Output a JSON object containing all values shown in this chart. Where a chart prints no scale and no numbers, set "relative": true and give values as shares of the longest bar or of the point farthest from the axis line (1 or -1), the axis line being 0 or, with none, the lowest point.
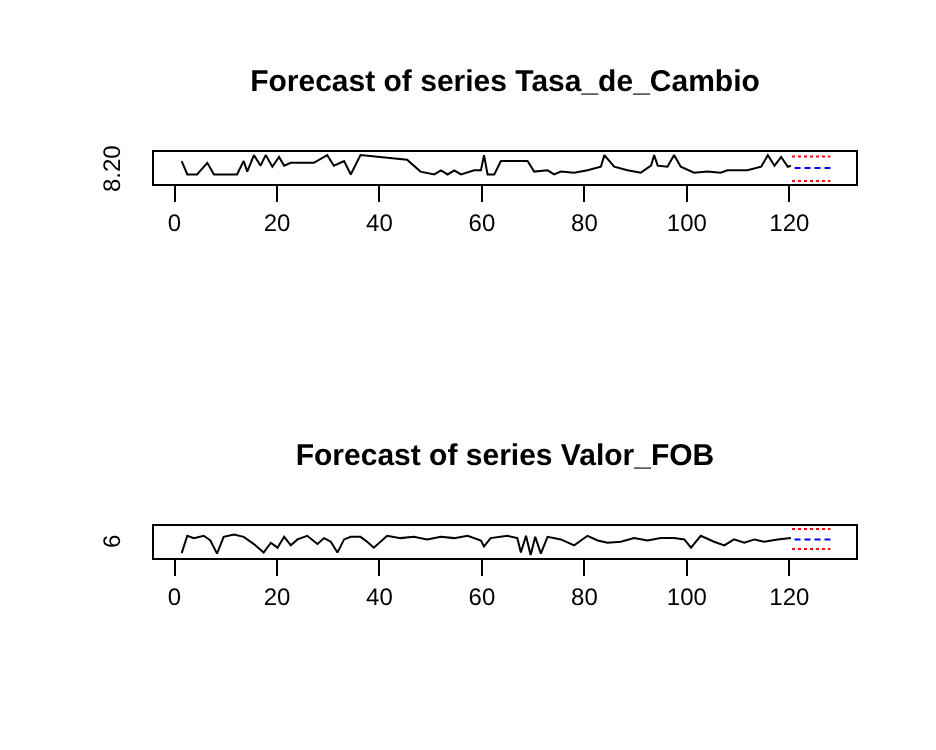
{
  "chart_data": [
    {
      "type": "line",
      "title": "Forecast of series Tasa_de_Cambio",
      "relative": true,
      "xlim": [
        -4,
        133
      ],
      "xticks": [
        0,
        20,
        40,
        60,
        80,
        100,
        120
      ],
      "grid": false,
      "annotations": [
        "8.20"
      ],
      "series": [
        {
          "color": "#000000",
          "line_style": "solid",
          "x": [
            1.4,
            2.5,
            4.4,
            6.4,
            7.7,
            12.2,
            13.5,
            14.2,
            15.5,
            16.8,
            17.8,
            19.1,
            20.4,
            21.4,
            22.7,
            27.2,
            29.8,
            31.1,
            33.1,
            34.4,
            36.3,
            45.4,
            48.0,
            50.7,
            52.0,
            53.3,
            54.6,
            55.9,
            58.5,
            59.8,
            60.4,
            61.1,
            62.4,
            63.7,
            68.9,
            70.2,
            72.8,
            74.1,
            75.4,
            78.0,
            80.6,
            83.2,
            83.9,
            85.8,
            88.4,
            91.0,
            93.0,
            93.6,
            94.3,
            96.2,
            97.5,
            98.8,
            101.4,
            104.0,
            106.6,
            107.9,
            111.8,
            114.5,
            115.8,
            117.1,
            118.4,
            119.7,
            120.3
          ],
          "values": [
            0.77,
            0.25,
            0.25,
            0.7,
            0.25,
            0.25,
            0.77,
            0.36,
            1,
            0.59,
            1,
            0.55,
            0.93,
            0.59,
            0.7,
            0.7,
            1,
            0.59,
            0.77,
            0.25,
            1,
            0.82,
            0.36,
            0.25,
            0.41,
            0.25,
            0.41,
            0.25,
            0.41,
            0.41,
            1,
            0.25,
            0.25,
            0.77,
            0.77,
            0.36,
            0.41,
            0.25,
            0.36,
            0.32,
            0.41,
            0.55,
            1,
            0.55,
            0.41,
            0.32,
            0.59,
            1,
            0.59,
            0.55,
            1,
            0.55,
            0.32,
            0.36,
            0.32,
            0.41,
            0.41,
            0.55,
            1,
            0.59,
            0.93,
            0.55,
            0.59
          ]
        },
        {
          "color": "#0000ff",
          "line_style": "dashed",
          "x": [
            121,
            128
          ],
          "values": [
            0.5,
            0.5
          ]
        },
        {
          "color": "#ff0000",
          "line_style": "dotted",
          "x": [
            120.5,
            128
          ],
          "values": [
            0.95,
            0.95
          ]
        },
        {
          "color": "#ff0000",
          "line_style": "dotted",
          "x": [
            120.5,
            128
          ],
          "values": [
            0,
            0
          ]
        }
      ]
    },
    {
      "type": "line",
      "title": "Forecast of series Valor_FOB",
      "relative": true,
      "xlim": [
        -4,
        133
      ],
      "xticks": [
        0,
        20,
        40,
        60,
        80,
        100,
        120
      ],
      "grid": false,
      "annotations": [
        "6"
      ],
      "series": [
        {
          "color": "#000000",
          "line_style": "solid",
          "x": [
            1.4,
            2.5,
            3.8,
            5.7,
            7.0,
            8.3,
            9.6,
            11.6,
            13.5,
            15.5,
            17.4,
            18.8,
            20.1,
            21.4,
            22.7,
            24.0,
            25.9,
            27.9,
            29.2,
            30.5,
            31.8,
            33.1,
            34.4,
            36.3,
            37.6,
            38.9,
            41.5,
            44.1,
            46.7,
            49.3,
            52.0,
            54.6,
            57.2,
            59.8,
            60.4,
            61.7,
            65.0,
            66.9,
            67.6,
            68.6,
            69.5,
            70.4,
            71.5,
            72.8,
            75.4,
            78.0,
            80.6,
            82.6,
            84.5,
            87.1,
            89.7,
            92.3,
            94.9,
            97.5,
            99.5,
            100.8,
            102.7,
            105.3,
            107.3,
            109.2,
            111.2,
            113.2,
            115.1,
            117.7,
            120.3
          ],
          "values": [
            0.07,
            0.74,
            0.65,
            0.74,
            0.56,
            0.05,
            0.7,
            0.79,
            0.7,
            0.42,
            0.09,
            0.47,
            0.28,
            0.7,
            0.37,
            0.6,
            0.74,
            0.42,
            0.65,
            0.51,
            0.09,
            0.6,
            0.7,
            0.7,
            0.51,
            0.28,
            0.74,
            0.65,
            0.7,
            0.6,
            0.7,
            0.65,
            0.74,
            0.56,
            0.33,
            0.65,
            0.74,
            0.65,
            0.09,
            0.74,
            0,
            0.7,
            0.05,
            0.7,
            0.6,
            0.37,
            0.74,
            0.56,
            0.47,
            0.51,
            0.65,
            0.56,
            0.65,
            0.65,
            0.6,
            0.28,
            0.74,
            0.51,
            0.37,
            0.6,
            0.47,
            0.6,
            0.51,
            0.6,
            0.65
          ]
        },
        {
          "color": "#0000ff",
          "line_style": "dashed",
          "x": [
            121,
            128
          ],
          "values": [
            0.6,
            0.6
          ]
        },
        {
          "color": "#ff0000",
          "line_style": "dotted",
          "x": [
            120.5,
            128
          ],
          "values": [
            1,
            1
          ]
        },
        {
          "color": "#ff0000",
          "line_style": "dotted",
          "x": [
            120.5,
            128
          ],
          "values": [
            0.23,
            0.23
          ]
        }
      ]
    }
  ]
}
